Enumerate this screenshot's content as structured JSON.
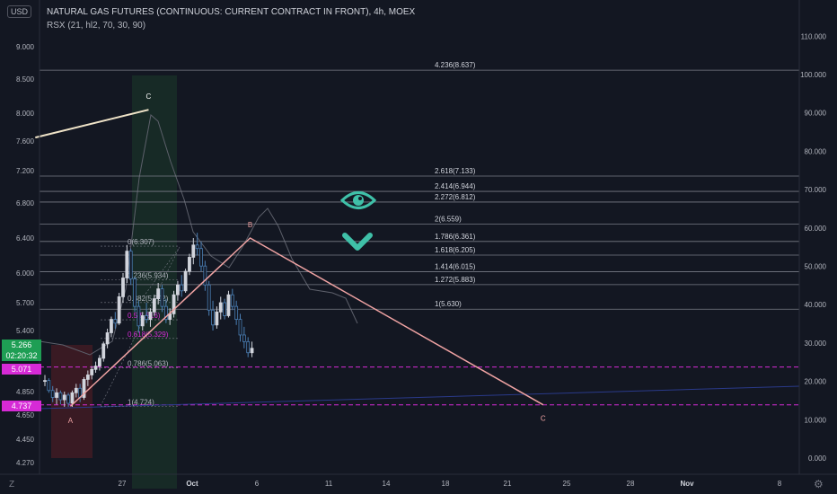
{
  "header": {
    "title": "NATURAL GAS FUTURES (CONTINUOUS: CURRENT CONTRACT IN FRONT), 4h, MOEX",
    "indicator": "RSX (21, hl2, 70, 30, 90)",
    "currency_badge": "USD",
    "z_button": "Z",
    "settings_icon": "gear-icon"
  },
  "price_tags": {
    "last_price": "5.266",
    "countdown": "02:20:32",
    "line1": "5.071",
    "line2": "4.737"
  },
  "colors": {
    "background": "#131722",
    "up_candle": "#d1d4dc",
    "down_candle": "#4a7fb5",
    "wave_line": "#f0a3a3",
    "fib_line": "#787b86",
    "magenta_line": "#d62ad6",
    "eye_icon": "#3fc0a8",
    "green_zone": "#1b3b2a",
    "red_zone": "#4a1d24"
  },
  "chart_data": {
    "type": "candlestick",
    "left_axis": {
      "ticks": [
        "9.000",
        "8.500",
        "8.000",
        "7.600",
        "7.200",
        "6.800",
        "6.400",
        "6.000",
        "5.700",
        "5.400",
        "4.850",
        "4.650",
        "4.450",
        "4.270"
      ],
      "values": [
        9.0,
        8.5,
        8.0,
        7.6,
        7.2,
        6.8,
        6.4,
        6.0,
        5.7,
        5.4,
        4.85,
        4.65,
        4.45,
        4.27
      ]
    },
    "right_axis": {
      "ticks": [
        "110.000",
        "100.000",
        "90.000",
        "80.000",
        "70.000",
        "60.000",
        "50.000",
        "40.000",
        "30.000",
        "20.000",
        "10.000",
        "0.000"
      ],
      "values": [
        110,
        100,
        90,
        80,
        70,
        60,
        50,
        40,
        30,
        20,
        10,
        0
      ]
    },
    "x_axis": {
      "ticks": [
        "27",
        "Oct",
        "6",
        "11",
        "14",
        "18",
        "21",
        "25",
        "28",
        "Nov",
        "8"
      ],
      "bold": [
        "Oct",
        "Nov"
      ]
    },
    "fib_levels": [
      {
        "label": "4.236(8.637)",
        "value": 8.637
      },
      {
        "label": "2.618(7.133)",
        "value": 7.133
      },
      {
        "label": "2.414(6.944)",
        "value": 6.944
      },
      {
        "label": "2.272(6.812)",
        "value": 6.812
      },
      {
        "label": "2(6.559)",
        "value": 6.559
      },
      {
        "label": "1.786(6.361)",
        "value": 6.361
      },
      {
        "label": "1.618(6.205)",
        "value": 6.205
      },
      {
        "label": "1.414(6.015)",
        "value": 6.015
      },
      {
        "label": "1.272(5.883)",
        "value": 5.883
      },
      {
        "label": "1(5.630)",
        "value": 5.63
      }
    ],
    "retracement_levels": [
      {
        "label": "0(6.307)",
        "value": 6.307
      },
      {
        "label": "0.236(5.934)",
        "value": 5.934
      },
      {
        "label": "0.382(5.702)",
        "value": 5.702
      },
      {
        "label": "0.5(5.516)",
        "value": 5.516
      },
      {
        "label": "0.618(5.329)",
        "value": 5.329
      },
      {
        "label": "0.786(5.063)",
        "value": 5.063
      },
      {
        "label": "1(4.724)",
        "value": 4.724
      }
    ],
    "wave_labels": [
      {
        "label": "A",
        "price": 4.72,
        "time": 7
      },
      {
        "label": "B",
        "price": 6.4,
        "time": 53
      },
      {
        "label": "C",
        "price": 4.74,
        "time": 128
      },
      {
        "label": "C",
        "price": 8.05,
        "time": 27
      }
    ],
    "wave_points": [
      {
        "time": 7,
        "price": 4.724
      },
      {
        "time": 53,
        "price": 6.4
      },
      {
        "time": 128,
        "price": 4.737
      }
    ],
    "upper_line": [
      {
        "time": -2,
        "price": 7.65
      },
      {
        "time": 27,
        "price": 8.05
      }
    ],
    "magenta_levels": [
      5.071,
      4.737
    ],
    "candles": [
      [
        4.95,
        5.0,
        4.9,
        4.95
      ],
      [
        4.95,
        4.97,
        4.84,
        4.86
      ],
      [
        4.86,
        4.9,
        4.76,
        4.8
      ],
      [
        4.8,
        4.88,
        4.74,
        4.84
      ],
      [
        4.84,
        4.86,
        4.74,
        4.78
      ],
      [
        4.78,
        4.85,
        4.72,
        4.82
      ],
      [
        4.82,
        4.84,
        4.72,
        4.75
      ],
      [
        4.75,
        4.86,
        4.72,
        4.84
      ],
      [
        4.84,
        4.92,
        4.8,
        4.88
      ],
      [
        4.88,
        4.92,
        4.76,
        4.8
      ],
      [
        4.8,
        4.98,
        4.78,
        4.96
      ],
      [
        4.96,
        5.04,
        4.9,
        5.0
      ],
      [
        5.0,
        5.08,
        4.96,
        5.05
      ],
      [
        5.05,
        5.12,
        5.02,
        5.08
      ],
      [
        5.08,
        5.18,
        5.04,
        5.15
      ],
      [
        5.15,
        5.3,
        5.12,
        5.28
      ],
      [
        5.28,
        5.42,
        5.24,
        5.38
      ],
      [
        5.38,
        5.55,
        5.34,
        5.52
      ],
      [
        5.52,
        5.6,
        5.42,
        5.48
      ],
      [
        5.48,
        5.8,
        5.46,
        5.76
      ],
      [
        5.76,
        6.0,
        5.7,
        5.95
      ],
      [
        5.95,
        6.32,
        5.9,
        6.25
      ],
      [
        6.25,
        6.28,
        5.88,
        5.94
      ],
      [
        5.94,
        5.96,
        5.6,
        5.66
      ],
      [
        5.66,
        5.72,
        5.38,
        5.45
      ],
      [
        5.45,
        5.6,
        5.4,
        5.56
      ],
      [
        5.56,
        5.7,
        5.48,
        5.52
      ],
      [
        5.52,
        5.64,
        5.44,
        5.6
      ],
      [
        5.6,
        5.78,
        5.56,
        5.74
      ],
      [
        5.74,
        5.9,
        5.68,
        5.84
      ],
      [
        5.84,
        5.88,
        5.6,
        5.66
      ],
      [
        5.66,
        5.74,
        5.48,
        5.52
      ],
      [
        5.52,
        5.64,
        5.46,
        5.58
      ],
      [
        5.58,
        5.82,
        5.54,
        5.78
      ],
      [
        5.78,
        5.92,
        5.72,
        5.88
      ],
      [
        5.88,
        5.98,
        5.76,
        5.82
      ],
      [
        5.82,
        6.05,
        5.8,
        6.02
      ],
      [
        6.02,
        6.22,
        5.98,
        6.18
      ],
      [
        6.18,
        6.4,
        6.1,
        6.32
      ],
      [
        6.32,
        6.46,
        6.2,
        6.28
      ],
      [
        6.28,
        6.36,
        6.02,
        6.08
      ],
      [
        6.08,
        6.14,
        5.82,
        5.88
      ],
      [
        5.88,
        5.92,
        5.56,
        5.62
      ],
      [
        5.62,
        5.72,
        5.4,
        5.46
      ],
      [
        5.46,
        5.66,
        5.42,
        5.6
      ],
      [
        5.6,
        5.76,
        5.52,
        5.7
      ],
      [
        5.7,
        5.74,
        5.52,
        5.56
      ],
      [
        5.56,
        5.82,
        5.54,
        5.78
      ],
      [
        5.78,
        5.84,
        5.62,
        5.66
      ],
      [
        5.66,
        5.72,
        5.46,
        5.52
      ],
      [
        5.52,
        5.58,
        5.3,
        5.36
      ],
      [
        5.36,
        5.44,
        5.24,
        5.3
      ],
      [
        5.3,
        5.34,
        5.16,
        5.2
      ],
      [
        5.2,
        5.3,
        5.16,
        5.24
      ]
    ]
  }
}
